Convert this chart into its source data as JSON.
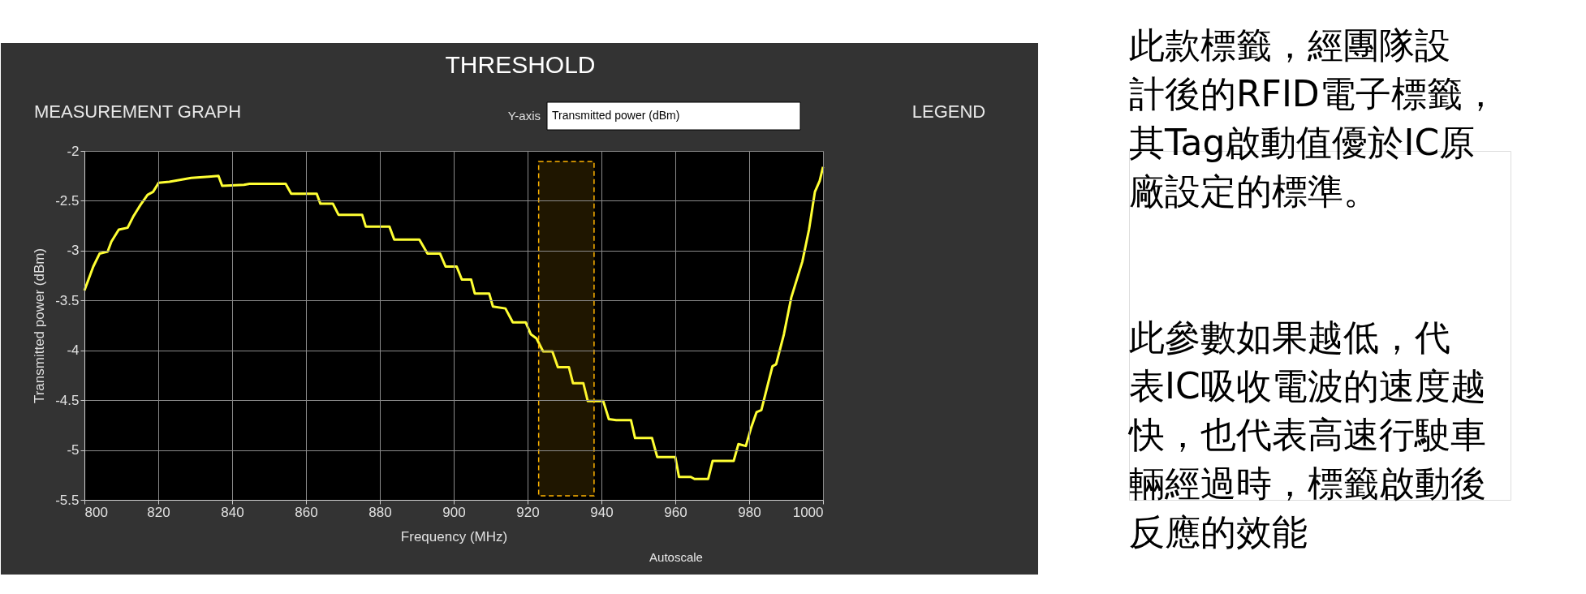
{
  "chart_data": {
    "type": "line",
    "title": "THRESHOLD",
    "xlabel": "Frequency (MHz)",
    "ylabel": "Transmitted power (dBm)",
    "x": [
      800,
      802.4,
      804.1,
      806.3,
      807.3,
      809.3,
      811.7,
      813.2,
      815.2,
      817.1,
      818.6,
      820.1,
      823,
      828.9,
      832.9,
      836.3,
      837.3,
      843.2,
      844.7,
      854.5,
      856,
      862.9,
      863.9,
      867.3,
      868.8,
      875.2,
      876.2,
      882.6,
      883.9,
      890.7,
      892.9,
      896.3,
      897.8,
      900.8,
      902.2,
      904.7,
      905.7,
      909.6,
      910.6,
      914,
      916,
      919.5,
      920.9,
      922.4,
      924.2,
      926.7,
      928.2,
      931.2,
      932.3,
      935.1,
      936.3,
      940.5,
      942,
      944,
      948,
      949.1,
      953.7,
      955.1,
      960,
      961,
      964.2,
      965.2,
      968.9,
      970.1,
      975.8,
      977.1,
      979.1,
      980.5,
      982,
      983.3,
      986.3,
      987.3,
      989.4,
      991.4,
      994.4,
      996.2,
      997.8,
      999.1,
      1000
    ],
    "series": [
      {
        "color": "#ffff33",
        "values": [
          -3.4,
          -3.16,
          -3.03,
          -3.01,
          -2.91,
          -2.79,
          -2.77,
          -2.66,
          -2.54,
          -2.44,
          -2.41,
          -2.32,
          -2.31,
          -2.27,
          -2.26,
          -2.25,
          -2.35,
          -2.34,
          -2.33,
          -2.33,
          -2.43,
          -2.43,
          -2.53,
          -2.53,
          -2.64,
          -2.64,
          -2.76,
          -2.76,
          -2.89,
          -2.89,
          -3.03,
          -3.03,
          -3.16,
          -3.16,
          -3.29,
          -3.29,
          -3.43,
          -3.43,
          -3.56,
          -3.58,
          -3.72,
          -3.72,
          -3.84,
          -3.88,
          -4.01,
          -4.01,
          -4.17,
          -4.17,
          -4.33,
          -4.33,
          -4.51,
          -4.51,
          -4.69,
          -4.7,
          -4.7,
          -4.88,
          -4.88,
          -5.07,
          -5.07,
          -5.27,
          -5.27,
          -5.29,
          -5.29,
          -5.11,
          -5.11,
          -4.94,
          -4.96,
          -4.78,
          -4.62,
          -4.6,
          -4.16,
          -4.14,
          -3.84,
          -3.47,
          -3.11,
          -2.79,
          -2.41,
          -2.3,
          -2.16
        ]
      }
    ],
    "xlim": [
      800,
      1000
    ],
    "xticks": [
      800,
      820,
      840,
      860,
      880,
      900,
      920,
      940,
      960,
      980,
      1000
    ],
    "ylim": [
      -5.5,
      -2
    ],
    "yticks": [
      -2,
      -2.5,
      -3,
      -3.5,
      -4,
      -4.5,
      -5,
      -5.5
    ],
    "grid": true,
    "line_style": "solid",
    "bands": [
      {
        "axis": "x",
        "from": 923,
        "to": 938,
        "color": "#ffb400"
      }
    ],
    "annotations": [
      "MEASUREMENT GRAPH",
      "Y-axis",
      "Transmitted power (dBm)",
      "LEGEND",
      "Autoscale",
      "　此款標籤，經團隊設計後的RFID電子標籤，其Tag啟動值優於IC原廠設定的標準。",
      "　此參數如果越低，代表IC吸收電波的速度越快，也代表高速行駛車輛經過時，標籤啟動後反應的效能"
    ]
  }
}
